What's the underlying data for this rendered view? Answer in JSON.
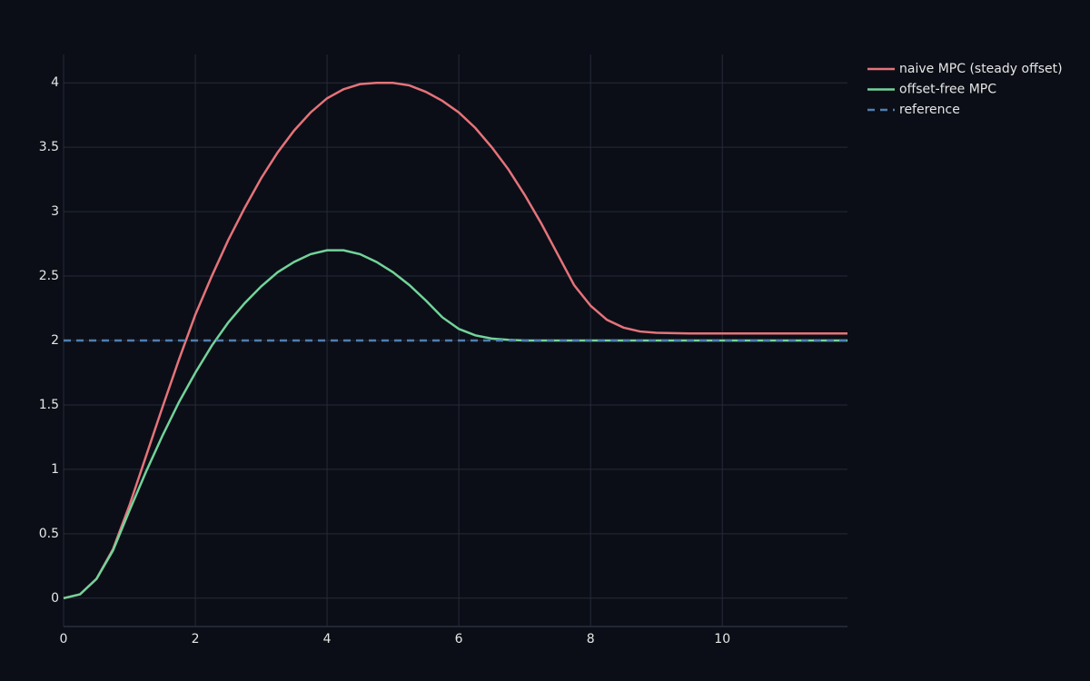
{
  "chart_data": {
    "type": "line",
    "xlim": [
      0,
      11.9
    ],
    "ylim": [
      -0.22,
      4.22
    ],
    "xticks": [
      0,
      2,
      4,
      6,
      8,
      10
    ],
    "yticks": [
      0,
      0.5,
      1,
      1.5,
      2,
      2.5,
      3,
      3.5,
      4
    ],
    "grid": true,
    "legend": "outside-top-right",
    "series": [
      {
        "name": "naive MPC (steady offset)",
        "color": "#e5737a",
        "dash": "solid",
        "x": [
          0,
          0.25,
          0.5,
          0.75,
          1,
          1.25,
          1.5,
          1.75,
          2,
          2.25,
          2.5,
          2.75,
          3,
          3.25,
          3.5,
          3.75,
          4,
          4.25,
          4.5,
          4.75,
          5,
          5.25,
          5.5,
          5.75,
          6,
          6.25,
          6.5,
          6.75,
          7,
          7.25,
          7.5,
          7.75,
          8,
          8.25,
          8.5,
          8.75,
          9,
          9.5,
          10,
          10.5,
          11,
          11.9
        ],
        "values": [
          0,
          0.03,
          0.15,
          0.38,
          0.72,
          1.1,
          1.48,
          1.85,
          2.2,
          2.5,
          2.78,
          3.03,
          3.26,
          3.46,
          3.63,
          3.77,
          3.88,
          3.95,
          3.99,
          4.0,
          4.0,
          3.98,
          3.93,
          3.86,
          3.77,
          3.65,
          3.5,
          3.33,
          3.13,
          2.91,
          2.67,
          2.43,
          2.27,
          2.16,
          2.1,
          2.07,
          2.06,
          2.055,
          2.055,
          2.055,
          2.055,
          2.055
        ]
      },
      {
        "name": "offset-free MPC",
        "color": "#72d39a",
        "dash": "solid",
        "x": [
          0,
          0.25,
          0.5,
          0.75,
          1,
          1.25,
          1.5,
          1.75,
          2,
          2.25,
          2.5,
          2.75,
          3,
          3.25,
          3.5,
          3.75,
          4,
          4.25,
          4.5,
          4.75,
          5,
          5.25,
          5.5,
          5.75,
          6,
          6.25,
          6.5,
          6.75,
          7,
          8,
          9,
          10,
          11,
          11.9
        ],
        "values": [
          0,
          0.03,
          0.15,
          0.37,
          0.68,
          0.98,
          1.26,
          1.52,
          1.75,
          1.96,
          2.14,
          2.29,
          2.42,
          2.53,
          2.61,
          2.67,
          2.7,
          2.7,
          2.67,
          2.61,
          2.53,
          2.43,
          2.31,
          2.18,
          2.09,
          2.04,
          2.015,
          2.005,
          2.0,
          2.0,
          2.0,
          2.0,
          2.0,
          2.0
        ]
      },
      {
        "name": "reference",
        "color": "#4f7fb0",
        "dash": "dash",
        "x": [
          0,
          11.9
        ],
        "values": [
          2,
          2
        ]
      }
    ]
  }
}
